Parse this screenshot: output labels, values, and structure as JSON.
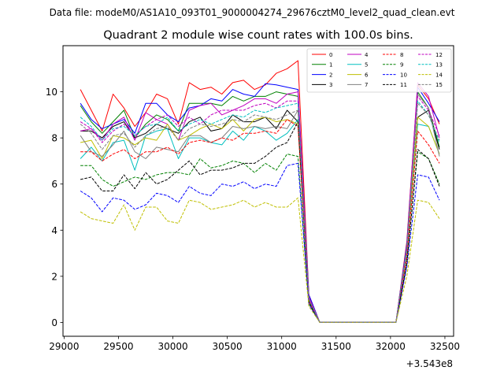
{
  "chart_data": {
    "type": "line",
    "suptitle": "Data file: modeM0/AS1A10_093T01_9000004274_29676cztM0_level2_quad_clean.evt",
    "title": "Quadrant 2 module wise count rates with 100.0s bins.",
    "xlabel": "",
    "ylabel": "",
    "x_offset_label": "+3.543e8",
    "xlim": [
      28990,
      32580
    ],
    "ylim": [
      -0.6,
      12.0
    ],
    "xticks": [
      29000,
      29500,
      30000,
      30500,
      31000,
      31500,
      32000,
      32500
    ],
    "yticks": [
      0,
      2,
      4,
      6,
      8,
      10
    ],
    "legend_position": "top-right",
    "x": [
      29150,
      29250,
      29350,
      29450,
      29550,
      29650,
      29750,
      29850,
      29950,
      30050,
      30150,
      30250,
      30350,
      30450,
      30550,
      30650,
      30750,
      30850,
      30950,
      31050,
      31150,
      31250,
      31350,
      31450,
      31550,
      31650,
      31750,
      31850,
      31950,
      32050,
      32150,
      32250,
      32350,
      32450
    ],
    "series": [
      {
        "name": "0",
        "color": "#ff0000",
        "dash": "solid",
        "values": [
          10.1,
          9.2,
          8.3,
          9.9,
          9.3,
          8.5,
          9.1,
          9.9,
          9.7,
          8.6,
          10.4,
          10.1,
          10.2,
          9.9,
          10.4,
          10.5,
          10.1,
          10.3,
          10.8,
          11.0,
          11.35,
          1.2,
          0,
          0,
          0,
          0,
          0,
          0,
          0,
          0,
          3.5,
          10.3,
          9.7,
          8.6
        ]
      },
      {
        "name": "1",
        "color": "#008000",
        "dash": "solid",
        "values": [
          9.4,
          8.7,
          8.2,
          8.7,
          9.2,
          8.0,
          8.6,
          9.0,
          8.8,
          8.3,
          9.5,
          9.5,
          9.5,
          9.4,
          9.8,
          9.6,
          9.8,
          9.8,
          10.0,
          9.9,
          9.8,
          1.1,
          0,
          0,
          0,
          0,
          0,
          0,
          0,
          0,
          3.3,
          10.0,
          9.3,
          7.6
        ]
      },
      {
        "name": "2",
        "color": "#0000ff",
        "dash": "solid",
        "values": [
          9.5,
          8.8,
          8.4,
          8.6,
          8.8,
          8.2,
          9.5,
          9.5,
          9.0,
          8.7,
          9.3,
          9.4,
          9.7,
          9.6,
          10.1,
          9.9,
          9.8,
          10.35,
          10.3,
          10.2,
          10.1,
          1.2,
          0,
          0,
          0,
          0,
          0,
          0,
          0,
          0,
          3.4,
          10.2,
          9.5,
          8.7
        ]
      },
      {
        "name": "3",
        "color": "#000000",
        "dash": "solid",
        "values": [
          8.3,
          8.3,
          8.0,
          8.5,
          8.7,
          8.0,
          8.2,
          8.6,
          8.4,
          8.2,
          8.7,
          8.9,
          8.3,
          8.4,
          9.0,
          8.7,
          8.7,
          8.9,
          8.4,
          9.2,
          8.7,
          1.0,
          0,
          0,
          0,
          0,
          0,
          0,
          0,
          0,
          3.0,
          8.9,
          9.2,
          7.5
        ]
      },
      {
        "name": "4",
        "color": "#c000c0",
        "dash": "solid",
        "values": [
          8.3,
          8.4,
          7.9,
          8.6,
          8.9,
          7.9,
          9.1,
          8.8,
          8.6,
          7.9,
          9.2,
          9.4,
          9.5,
          9.0,
          9.2,
          9.4,
          9.7,
          9.7,
          9.5,
          9.9,
          10.0,
          1.1,
          0,
          0,
          0,
          0,
          0,
          0,
          0,
          0,
          3.3,
          10.4,
          9.8,
          8.0
        ]
      },
      {
        "name": "5",
        "color": "#00bfbf",
        "dash": "solid",
        "values": [
          7.1,
          7.6,
          7.0,
          7.8,
          7.9,
          6.6,
          8.1,
          8.3,
          8.4,
          7.1,
          8.0,
          8.0,
          7.8,
          7.7,
          8.3,
          7.9,
          8.5,
          8.3,
          7.9,
          8.2,
          8.8,
          1.0,
          0,
          0,
          0,
          0,
          0,
          0,
          0,
          0,
          3.0,
          8.6,
          8.5,
          7.3
        ]
      },
      {
        "name": "6",
        "color": "#bfbf00",
        "dash": "solid",
        "values": [
          7.8,
          7.9,
          7.1,
          8.1,
          8.0,
          7.7,
          8.0,
          7.9,
          8.6,
          7.9,
          8.1,
          8.4,
          8.6,
          8.4,
          8.8,
          8.3,
          8.8,
          8.9,
          8.7,
          8.8,
          8.6,
          1.0,
          0,
          0,
          0,
          0,
          0,
          0,
          0,
          0,
          3.1,
          8.9,
          8.5,
          7.3
        ]
      },
      {
        "name": "7",
        "color": "#808080",
        "dash": "solid",
        "values": [
          8.1,
          7.4,
          7.2,
          7.7,
          8.3,
          7.4,
          7.1,
          7.6,
          7.5,
          7.4,
          8.1,
          8.1,
          7.8,
          8.0,
          8.5,
          8.4,
          8.5,
          8.4,
          8.5,
          8.4,
          9.2,
          1.0,
          0,
          0,
          0,
          0,
          0,
          0,
          0,
          0,
          3.2,
          9.9,
          9.3,
          7.2
        ]
      },
      {
        "name": "8",
        "color": "#ff0000",
        "dash": "dashed",
        "values": [
          7.4,
          7.4,
          7.0,
          7.3,
          7.5,
          7.1,
          7.4,
          7.4,
          7.6,
          7.3,
          7.8,
          7.9,
          7.8,
          8.0,
          7.9,
          8.2,
          8.2,
          8.3,
          8.2,
          8.8,
          8.5,
          0.9,
          0,
          0,
          0,
          0,
          0,
          0,
          0,
          0,
          2.8,
          8.3,
          7.7,
          6.9
        ]
      },
      {
        "name": "9",
        "color": "#008000",
        "dash": "dashed",
        "values": [
          6.8,
          6.8,
          6.2,
          5.9,
          6.1,
          6.3,
          6.2,
          6.4,
          6.5,
          6.5,
          6.4,
          7.1,
          6.7,
          6.8,
          7.0,
          6.9,
          6.5,
          6.9,
          6.6,
          7.3,
          7.2,
          0.8,
          0,
          0,
          0,
          0,
          0,
          0,
          0,
          0,
          2.5,
          7.4,
          7.1,
          6.0
        ]
      },
      {
        "name": "10",
        "color": "#0000ff",
        "dash": "dashed",
        "values": [
          5.7,
          5.4,
          4.8,
          5.4,
          5.3,
          4.9,
          5.1,
          5.6,
          5.5,
          5.2,
          5.9,
          5.6,
          5.5,
          6.0,
          5.9,
          6.1,
          5.8,
          6.0,
          5.9,
          6.8,
          6.9,
          0.8,
          0,
          0,
          0,
          0,
          0,
          0,
          0,
          0,
          2.4,
          6.4,
          6.3,
          5.3
        ]
      },
      {
        "name": "11",
        "color": "#000000",
        "dash": "dashed",
        "values": [
          6.2,
          6.3,
          5.7,
          5.7,
          6.4,
          5.8,
          6.5,
          6.0,
          6.2,
          6.6,
          7.0,
          6.4,
          6.6,
          6.6,
          6.7,
          6.9,
          6.9,
          7.2,
          7.6,
          7.8,
          8.7,
          0.9,
          0,
          0,
          0,
          0,
          0,
          0,
          0,
          0,
          2.6,
          7.5,
          7.1,
          5.9
        ]
      },
      {
        "name": "12",
        "color": "#c000c0",
        "dash": "dashed",
        "values": [
          8.7,
          8.4,
          7.8,
          8.3,
          8.6,
          8.1,
          8.5,
          8.8,
          9.0,
          8.5,
          8.9,
          8.6,
          9.0,
          9.2,
          9.2,
          9.2,
          9.4,
          9.5,
          9.3,
          9.6,
          9.6,
          1.0,
          0,
          0,
          0,
          0,
          0,
          0,
          0,
          0,
          3.2,
          9.8,
          9.2,
          8.1
        ]
      },
      {
        "name": "13",
        "color": "#00bfbf",
        "dash": "dashed",
        "values": [
          8.9,
          8.5,
          7.9,
          8.4,
          8.5,
          8.1,
          8.5,
          8.6,
          8.9,
          8.3,
          8.6,
          8.8,
          8.6,
          8.8,
          9.0,
          8.9,
          9.2,
          9.1,
          9.3,
          9.4,
          9.5,
          1.0,
          0,
          0,
          0,
          0,
          0,
          0,
          0,
          0,
          3.2,
          9.6,
          9.0,
          7.8
        ]
      },
      {
        "name": "14",
        "color": "#bfbf00",
        "dash": "dashed",
        "values": [
          4.8,
          4.5,
          4.4,
          4.3,
          5.1,
          4.0,
          5.0,
          5.0,
          4.4,
          4.3,
          5.3,
          5.2,
          4.9,
          5.0,
          5.1,
          5.3,
          5.0,
          5.2,
          5.0,
          5.0,
          5.4,
          0.7,
          0,
          0,
          0,
          0,
          0,
          0,
          0,
          0,
          2.0,
          5.3,
          5.2,
          4.5
        ]
      },
      {
        "name": "15",
        "color": "#808080",
        "dash": "dashed",
        "values": [
          8.6,
          8.2,
          7.5,
          8.1,
          8.2,
          7.6,
          8.1,
          8.4,
          8.5,
          7.9,
          8.4,
          8.6,
          8.5,
          8.6,
          8.8,
          8.7,
          9.0,
          8.9,
          8.8,
          9.0,
          9.2,
          1.0,
          0,
          0,
          0,
          0,
          0,
          0,
          0,
          0,
          3.1,
          9.5,
          9.0,
          7.9
        ]
      }
    ]
  }
}
